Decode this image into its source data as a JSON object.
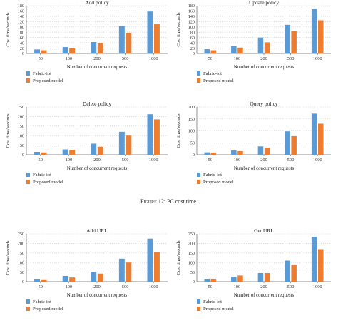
{
  "figure_captions": [
    {
      "label": "Figure 12:",
      "text": "PC cost time."
    },
    {
      "label": "",
      "text": ""
    }
  ],
  "colors": {
    "fabric": "#5b9bd5",
    "proposed": "#ed7d31",
    "grid": "#c8c8c8",
    "axis": "#666666"
  },
  "chart_data": [
    {
      "type": "bar",
      "title": "Add policy",
      "xlabel": "Number of concurrent requests",
      "ylabel": "Cost time/seconds",
      "categories": [
        "50",
        "100",
        "200",
        "500",
        "1000"
      ],
      "ylim": [
        0,
        180
      ],
      "yticks": [
        0,
        20,
        40,
        60,
        80,
        100,
        120,
        140,
        160,
        180
      ],
      "legend": "bottom-left",
      "series": [
        {
          "name": "Fabric-iot",
          "values": [
            15,
            24,
            43,
            103,
            158
          ]
        },
        {
          "name": "Proposed model",
          "values": [
            12,
            20,
            39,
            78,
            110
          ]
        }
      ]
    },
    {
      "type": "bar",
      "title": "Update policy",
      "xlabel": "Number of concurrent requests",
      "ylabel": "Cost time/seconds",
      "categories": [
        "50",
        "100",
        "200",
        "500",
        "1000"
      ],
      "ylim": [
        0,
        180
      ],
      "yticks": [
        0,
        20,
        40,
        60,
        80,
        100,
        120,
        140,
        160,
        180
      ],
      "legend": "bottom-left",
      "series": [
        {
          "name": "Fabric-iot",
          "values": [
            16,
            28,
            60,
            108,
            168
          ]
        },
        {
          "name": "Proposed model",
          "values": [
            12,
            22,
            42,
            85,
            125
          ]
        }
      ]
    },
    {
      "type": "bar",
      "title": "Delete policy",
      "xlabel": "Number of concurrent requests",
      "ylabel": "Cost time/seconds",
      "categories": [
        "50",
        "100",
        "200",
        "500",
        "1000"
      ],
      "ylim": [
        0,
        250
      ],
      "yticks": [
        0,
        50,
        100,
        150,
        200,
        250
      ],
      "legend": "bottom-left",
      "series": [
        {
          "name": "Fabric-iot",
          "values": [
            15,
            28,
            58,
            120,
            212
          ]
        },
        {
          "name": "Proposed model",
          "values": [
            12,
            25,
            42,
            100,
            185
          ]
        }
      ]
    },
    {
      "type": "bar",
      "title": "Query policy",
      "xlabel": "Number of concurrent requests",
      "ylabel": "Cost time/seconds",
      "categories": [
        "50",
        "100",
        "200",
        "500",
        "1000"
      ],
      "ylim": [
        0,
        200
      ],
      "yticks": [
        0,
        50,
        100,
        150,
        200
      ],
      "legend": "bottom-left",
      "series": [
        {
          "name": "Fabric-iot",
          "values": [
            10,
            18,
            35,
            98,
            172
          ]
        },
        {
          "name": "Proposed model",
          "values": [
            8,
            15,
            30,
            78,
            130
          ]
        }
      ]
    },
    {
      "type": "bar",
      "title": "Add URL",
      "xlabel": "Number of concurrent requests",
      "ylabel": "Cost time/seconds",
      "categories": [
        "50",
        "100",
        "200",
        "500",
        "1000"
      ],
      "ylim": [
        0,
        250
      ],
      "yticks": [
        0,
        50,
        100,
        150,
        200,
        250
      ],
      "legend": "bottom-left",
      "series": [
        {
          "name": "Fabric-iot",
          "values": [
            15,
            30,
            50,
            120,
            225
          ]
        },
        {
          "name": "Proposed model",
          "values": [
            12,
            22,
            42,
            100,
            155
          ]
        }
      ]
    },
    {
      "type": "bar",
      "title": "Get URL",
      "xlabel": "Number of concurrent requests",
      "ylabel": "Cost time/seconds",
      "categories": [
        "50",
        "100",
        "200",
        "500",
        "1000"
      ],
      "ylim": [
        0,
        250
      ],
      "yticks": [
        0,
        50,
        100,
        150,
        200,
        250
      ],
      "legend": "bottom-left",
      "series": [
        {
          "name": "Fabric-iot",
          "values": [
            15,
            25,
            45,
            110,
            235
          ]
        },
        {
          "name": "Proposed model",
          "values": [
            15,
            32,
            45,
            90,
            170
          ]
        }
      ]
    }
  ]
}
